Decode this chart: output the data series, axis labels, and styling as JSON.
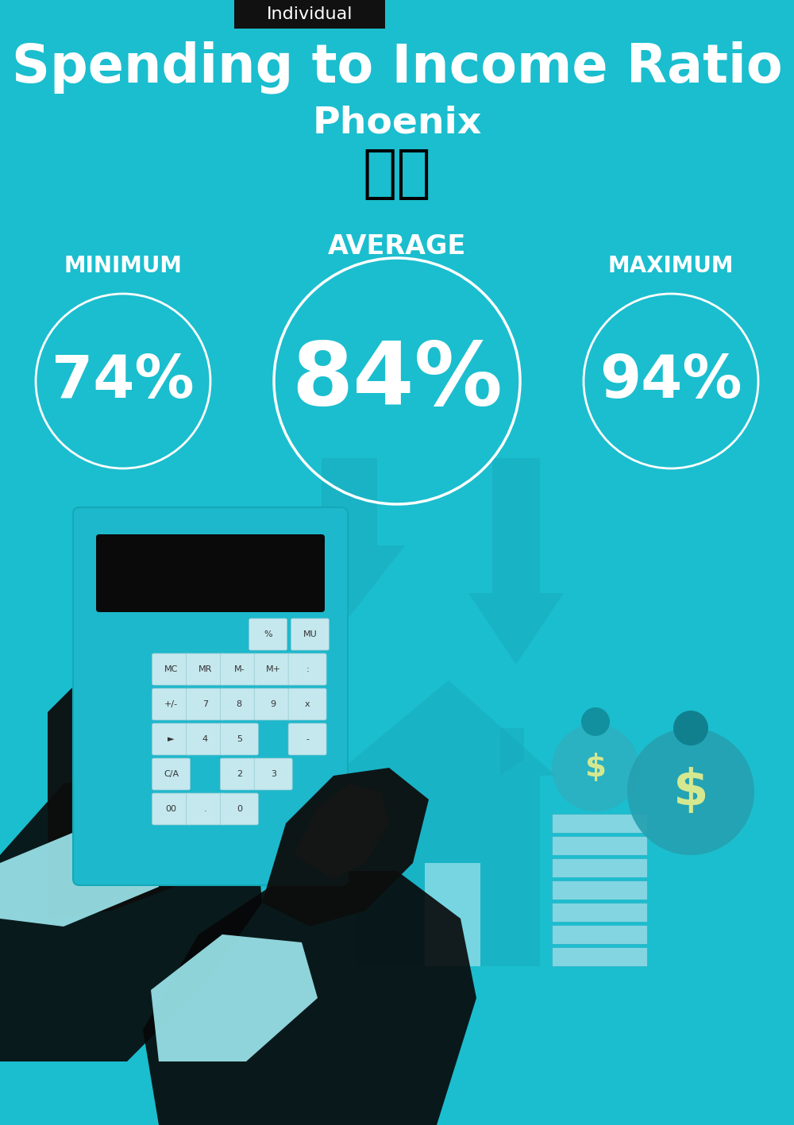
{
  "bg_color": "#1BBECE",
  "title": "Spending to Income Ratio",
  "city": "Phoenix",
  "tag_label": "Individual",
  "tag_bg": "#111111",
  "tag_text_color": "#ffffff",
  "avg_label": "AVERAGE",
  "min_label": "MINIMUM",
  "max_label": "MAXIMUM",
  "avg_value": "84%",
  "min_value": "74%",
  "max_value": "94%",
  "circle_color": "#ffffff",
  "text_color": "#ffffff",
  "title_fontsize": 48,
  "city_fontsize": 34,
  "tag_fontsize": 16,
  "avg_label_fontsize": 24,
  "min_max_label_fontsize": 20,
  "avg_val_fontsize": 80,
  "side_val_fontsize": 54,
  "flag_emoji": "🇺🇸",
  "fig_width": 10.0,
  "fig_height": 14.17,
  "dpi": 100
}
